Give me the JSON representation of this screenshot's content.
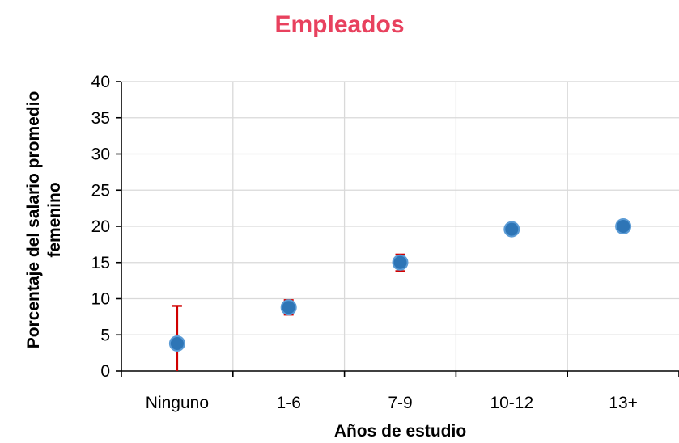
{
  "chart_data": {
    "type": "scatter",
    "title": "Empleados",
    "xlabel": "Años de estudio",
    "ylabel_lines": [
      "Porcentaje del salario promedio",
      "femenino"
    ],
    "categories": [
      "Ninguno",
      "1-6",
      "7-9",
      "10-12",
      "13+"
    ],
    "series": [
      {
        "values": [
          3.8,
          8.8,
          15.0,
          19.6,
          20.0
        ],
        "error_low": [
          0,
          7.8,
          13.8,
          19.6,
          20.0
        ],
        "error_high": [
          9.0,
          9.8,
          16.1,
          19.6,
          20.0
        ],
        "marker_color": "#2e75b6",
        "error_color": "#d00000"
      }
    ],
    "ylim": [
      0,
      40
    ],
    "yticks": [
      0,
      5,
      10,
      15,
      20,
      25,
      30,
      35,
      40
    ],
    "grid": true,
    "title_color": "#e8415e"
  }
}
